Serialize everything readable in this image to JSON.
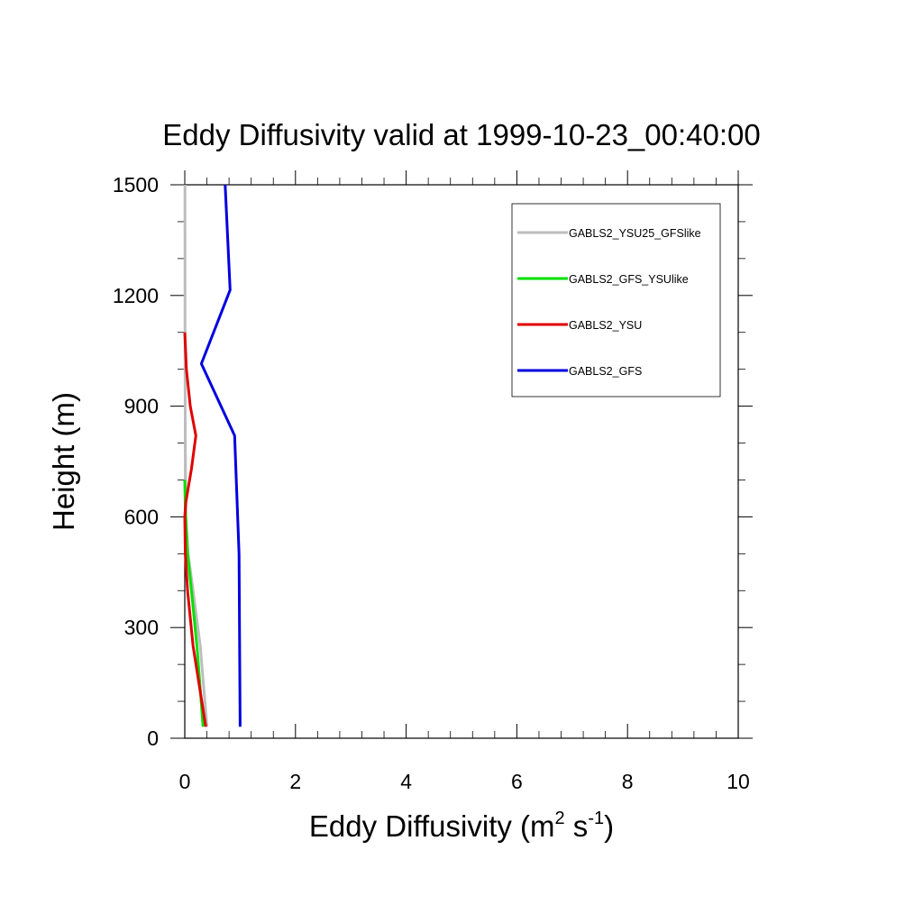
{
  "chart_data": {
    "type": "line",
    "title": "Eddy Diffusivity valid at 1999-10-23_00:40:00",
    "xlabel": {
      "base": "Eddy Diffusivity (m",
      "sup1": "2",
      "mid": " s",
      "sup2": "-1",
      "end": ")"
    },
    "ylabel": "Height (m)",
    "xlim": [
      0,
      10
    ],
    "ylim": [
      0,
      1500
    ],
    "xticks": [
      0,
      2,
      4,
      6,
      8,
      10
    ],
    "yticks": [
      0,
      300,
      600,
      900,
      1200,
      1500
    ],
    "grid": false,
    "legend_position": "top-right",
    "series": [
      {
        "name": "GABLS2_YSU25_GFSlike",
        "color": "#bdbdbd",
        "points": [
          [
            0.4,
            31
          ],
          [
            0.28,
            250
          ],
          [
            0.15,
            400
          ],
          [
            0.06,
            500
          ],
          [
            0.02,
            600
          ],
          [
            0.01,
            800
          ],
          [
            0.005,
            1000
          ],
          [
            0.003,
            1500
          ]
        ]
      },
      {
        "name": "GABLS2_GFS_YSUlike",
        "color": "#00e000",
        "points": [
          [
            0.33,
            31
          ],
          [
            0.22,
            250
          ],
          [
            0.12,
            400
          ],
          [
            0.05,
            500
          ],
          [
            0.01,
            620
          ],
          [
            0.0,
            700
          ]
        ]
      },
      {
        "name": "GABLS2_YSU",
        "color": "#e00000",
        "points": [
          [
            0.38,
            31
          ],
          [
            0.15,
            250
          ],
          [
            0.05,
            400
          ],
          [
            0.01,
            500
          ],
          [
            0.0,
            600
          ],
          [
            0.02,
            640
          ],
          [
            0.12,
            730
          ],
          [
            0.2,
            820
          ],
          [
            0.1,
            900
          ],
          [
            0.03,
            1000
          ],
          [
            0.0,
            1100
          ]
        ]
      },
      {
        "name": "GABLS2_GFS",
        "color": "#0000e0",
        "points": [
          [
            1.0,
            31
          ],
          [
            0.98,
            500
          ],
          [
            0.9,
            820
          ],
          [
            0.3,
            1015
          ],
          [
            0.82,
            1215
          ],
          [
            0.73,
            1500
          ]
        ]
      }
    ]
  }
}
